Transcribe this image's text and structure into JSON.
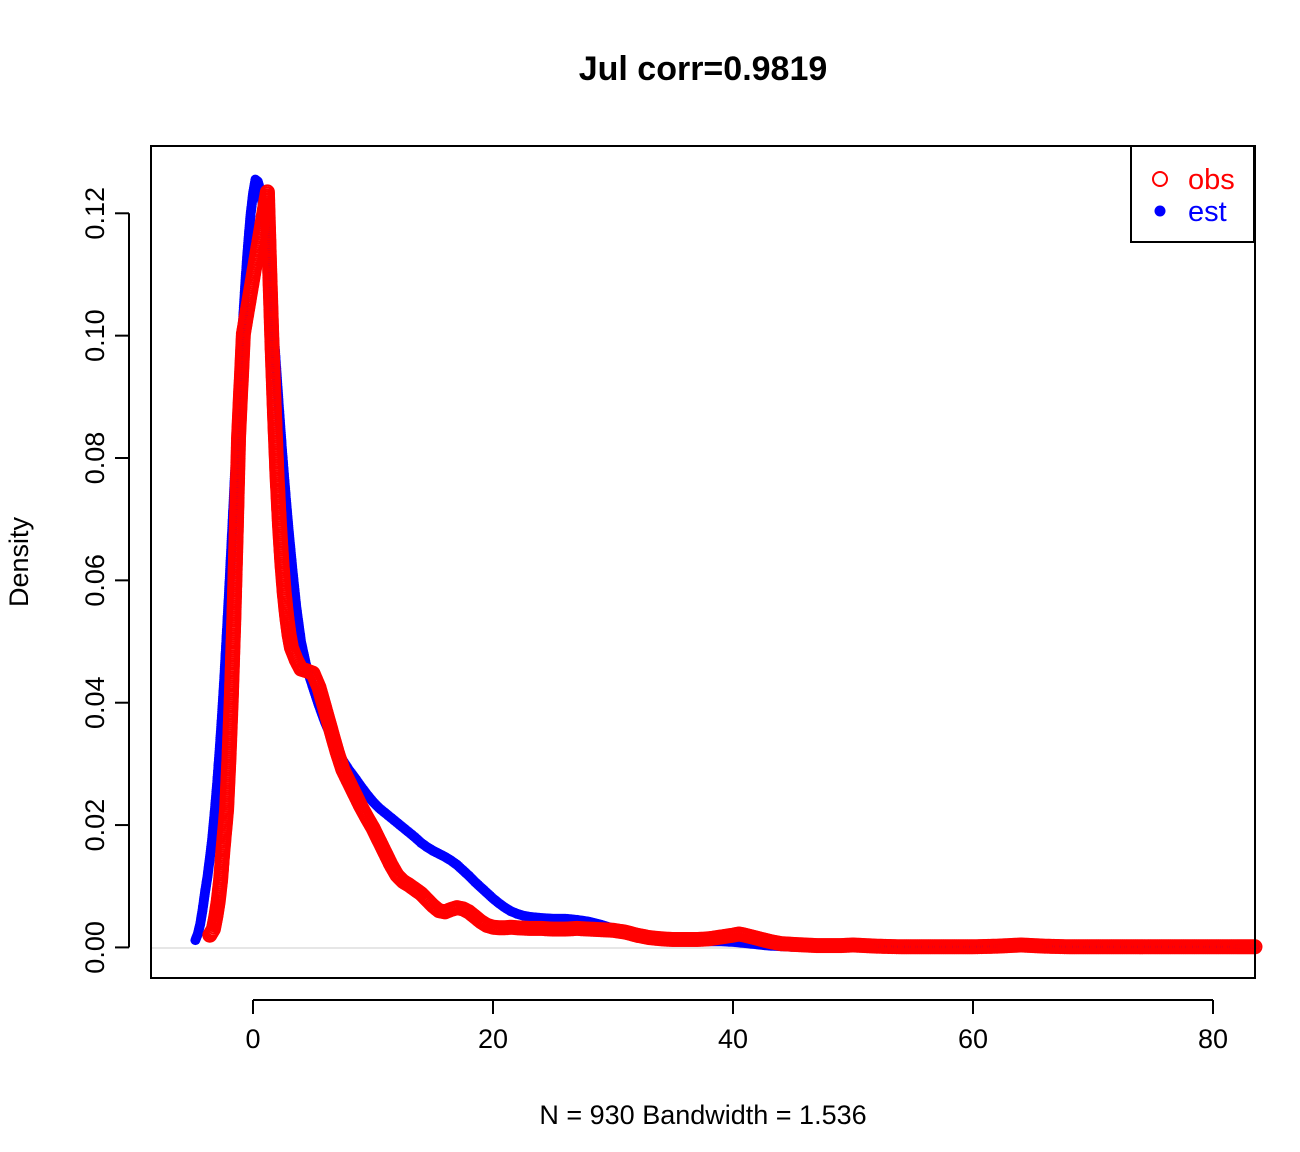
{
  "chart_data": {
    "type": "scatter",
    "title": "Jul corr=0.9819",
    "xlabel": "N = 930   Bandwidth = 1.536",
    "ylabel": "Density",
    "xlim": [
      -8.5,
      83.5
    ],
    "ylim": [
      -0.005,
      0.131
    ],
    "xticks": [
      0,
      20,
      40,
      60,
      80
    ],
    "xtick_labels": [
      "0",
      "20",
      "40",
      "60",
      "80"
    ],
    "yticks": [
      0.0,
      0.02,
      0.04,
      0.06,
      0.08,
      0.1,
      0.12
    ],
    "ytick_labels": [
      "0.00",
      "0.02",
      "0.04",
      "0.06",
      "0.08",
      "0.10",
      "0.12"
    ],
    "legend": {
      "position": "top-right"
    },
    "series": [
      {
        "name": "obs",
        "marker": "open-circle",
        "color": "#ff0000",
        "x": [
          -3.6,
          -3.3,
          -3.1,
          -2.9,
          -2.7,
          -2.5,
          -2.2,
          -2.0,
          -1.8,
          -1.6,
          -1.4,
          -1.2,
          -0.8,
          1.2,
          1.4,
          1.6,
          1.8,
          2.0,
          2.2,
          2.4,
          2.6,
          2.8,
          3.0,
          3.2,
          3.6,
          4.0,
          4.5,
          5.0,
          5.5,
          6.0,
          6.5,
          7.0,
          7.5,
          8.0,
          8.5,
          9.0,
          9.5,
          10.0,
          10.5,
          11.0,
          11.5,
          12.0,
          12.5,
          13.0,
          13.5,
          14.0,
          14.5,
          15.0,
          15.5,
          16.0,
          16.5,
          17.0,
          17.5,
          18.0,
          18.5,
          19.0,
          19.5,
          20.0,
          20.5,
          21.0,
          21.5,
          22.0,
          23.0,
          24.0,
          25.0,
          26.0,
          27.0,
          28.0,
          29.0,
          30.0,
          31.0,
          32.0,
          33.0,
          34.0,
          35.0,
          36.0,
          37.0,
          38.0,
          39.0,
          40.0,
          40.5,
          41.0,
          42.0,
          43.0,
          44.0,
          45.0,
          46.0,
          47.0,
          48.0,
          49.0,
          50.0,
          51.0,
          52.0,
          54.0,
          56.0,
          58.0,
          60.0,
          62.0,
          63.0,
          64.0,
          65.0,
          66.0,
          68.0,
          70.0,
          72.0,
          74.0,
          76.0,
          78.0,
          80.0,
          82.0,
          83.5
        ],
        "y": [
          0.002,
          0.003,
          0.005,
          0.0075,
          0.011,
          0.016,
          0.0225,
          0.031,
          0.0412,
          0.0535,
          0.0678,
          0.0835,
          0.1003,
          0.1235,
          0.1102,
          0.0976,
          0.0868,
          0.0772,
          0.0693,
          0.063,
          0.058,
          0.0542,
          0.0512,
          0.049,
          0.047,
          0.0455,
          0.0452,
          0.0448,
          0.0425,
          0.039,
          0.0355,
          0.032,
          0.029,
          0.027,
          0.025,
          0.023,
          0.0212,
          0.0195,
          0.0175,
          0.0155,
          0.0135,
          0.0118,
          0.0108,
          0.0102,
          0.0095,
          0.0088,
          0.0078,
          0.0068,
          0.006,
          0.0058,
          0.0062,
          0.0065,
          0.0063,
          0.0058,
          0.005,
          0.0042,
          0.0036,
          0.0033,
          0.0032,
          0.0032,
          0.0033,
          0.0032,
          0.0031,
          0.0031,
          0.003,
          0.003,
          0.0031,
          0.003,
          0.0029,
          0.0028,
          0.0025,
          0.002,
          0.0016,
          0.0014,
          0.0013,
          0.0013,
          0.0013,
          0.0014,
          0.0017,
          0.002,
          0.0022,
          0.002,
          0.0015,
          0.001,
          0.0006,
          0.0005,
          0.0004,
          0.0003,
          0.0003,
          0.0003,
          0.0004,
          0.0003,
          0.0002,
          0.0001,
          0.0001,
          0.0001,
          0.0001,
          0.0002,
          0.0003,
          0.0004,
          0.0003,
          0.0002,
          0.0001,
          0.0001,
          0.0001,
          0.0001,
          0.0001,
          0.0001,
          0.0001,
          0.0001,
          0.0001
        ]
      },
      {
        "name": "est",
        "marker": "filled-circle",
        "color": "#0000ff",
        "x": [
          -4.8,
          -4.6,
          -4.4,
          -4.2,
          -4.0,
          -3.8,
          -3.6,
          -3.4,
          -3.2,
          -3.0,
          -2.8,
          -2.6,
          -2.4,
          -2.2,
          -2.0,
          -1.8,
          -1.6,
          -1.4,
          -1.2,
          -1.0,
          -0.8,
          -0.6,
          -0.4,
          -0.2,
          0.0,
          0.2,
          0.4,
          0.6,
          0.8,
          1.0,
          1.2,
          1.4,
          1.6,
          1.8,
          2.0,
          2.2,
          2.4,
          2.6,
          2.8,
          3.0,
          3.3,
          3.6,
          4.0,
          4.5,
          5.0,
          5.5,
          6.0,
          6.5,
          7.0,
          7.5,
          8.0,
          8.5,
          9.0,
          9.5,
          10.0,
          10.5,
          11.0,
          11.5,
          12.0,
          12.5,
          13.0,
          13.5,
          14.0,
          14.5,
          15.0,
          15.5,
          16.0,
          16.5,
          17.0,
          17.5,
          18.0,
          18.5,
          19.0,
          19.5,
          20.0,
          20.5,
          21.0,
          21.5,
          22.0,
          22.5,
          23.0,
          24.0,
          25.0,
          26.0,
          27.0,
          28.0,
          29.0,
          30.0,
          31.0,
          32.0,
          33.0,
          34.0,
          35.0,
          36.0,
          37.0,
          38.0,
          39.0,
          40.0,
          41.0,
          42.0,
          43.0,
          44.0,
          45.0,
          46.0,
          47.0,
          48.0,
          50.0,
          55.0,
          60.0,
          65.0,
          70.0,
          75.0,
          80.0,
          83.5
        ],
        "y": [
          0.0012,
          0.0022,
          0.0038,
          0.0062,
          0.009,
          0.0115,
          0.0145,
          0.0178,
          0.022,
          0.0265,
          0.0318,
          0.0375,
          0.0438,
          0.0508,
          0.058,
          0.0658,
          0.0735,
          0.0815,
          0.0892,
          0.0965,
          0.1035,
          0.1098,
          0.1152,
          0.1198,
          0.1232,
          0.1255,
          0.1252,
          0.1238,
          0.1215,
          0.1185,
          0.1142,
          0.1095,
          0.1042,
          0.0985,
          0.0928,
          0.0872,
          0.0818,
          0.0768,
          0.072,
          0.0676,
          0.0615,
          0.0558,
          0.05,
          0.0455,
          0.0425,
          0.0395,
          0.0368,
          0.0345,
          0.0325,
          0.0305,
          0.029,
          0.0277,
          0.0263,
          0.025,
          0.0238,
          0.0228,
          0.022,
          0.0212,
          0.0204,
          0.0196,
          0.0188,
          0.018,
          0.0171,
          0.0164,
          0.0158,
          0.0153,
          0.0148,
          0.0142,
          0.0135,
          0.0126,
          0.0117,
          0.0107,
          0.0098,
          0.0089,
          0.008,
          0.0072,
          0.0065,
          0.0059,
          0.0055,
          0.0052,
          0.005,
          0.0048,
          0.0047,
          0.0047,
          0.0045,
          0.0042,
          0.0037,
          0.0031,
          0.0025,
          0.002,
          0.0016,
          0.0014,
          0.0013,
          0.0012,
          0.0011,
          0.001,
          0.001,
          0.0009,
          0.0007,
          0.0005,
          0.0003,
          0.0002,
          0.0001,
          0.0001,
          0.0001,
          0.0,
          0.0,
          0.0,
          0.0,
          0.0,
          0.0,
          0.0,
          0.0,
          0.0
        ]
      }
    ]
  }
}
